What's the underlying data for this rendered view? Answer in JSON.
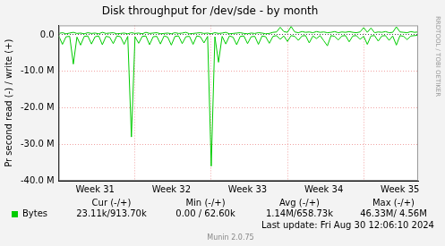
{
  "chart_data": {
    "type": "line",
    "title": "Disk throughput for /dev/sde - by month",
    "y_label": "Pr second read (-) / write (+)",
    "categories": [
      null,
      null,
      null,
      null,
      null,
      null,
      null,
      null,
      null,
      null,
      "Week 31",
      null,
      null,
      null,
      null,
      null,
      null,
      null,
      null,
      null,
      null,
      null,
      null,
      null,
      null,
      null,
      null,
      null,
      null,
      null,
      null,
      "Week 32",
      null,
      null,
      null,
      null,
      null,
      null,
      null,
      null,
      null,
      null,
      null,
      null,
      null,
      null,
      null,
      null,
      null,
      null,
      null,
      null,
      "Week 33",
      null,
      null,
      null,
      null,
      null,
      null,
      null,
      null,
      null,
      null,
      null,
      null,
      null,
      null,
      null,
      null,
      null,
      null,
      null,
      null,
      "Week 34",
      null,
      null,
      null,
      null,
      null,
      null,
      null,
      null,
      null,
      null,
      null,
      null,
      null,
      null,
      null,
      null,
      null,
      null,
      null,
      null,
      "Week 35",
      null,
      null,
      null,
      null,
      null
    ],
    "series": [
      {
        "name": "Bytes",
        "color": "#00cc00",
        "values": [
          400000,
          600000,
          300000,
          500000,
          700000,
          400000,
          500000,
          300000,
          600000,
          400000,
          500000,
          300000,
          700000,
          400000,
          500000,
          600000,
          300000,
          400000,
          500000,
          300000,
          600000,
          400000,
          500000,
          300000,
          700000,
          400000,
          500000,
          600000,
          300000,
          400000,
          500000,
          300000,
          600000,
          400000,
          500000,
          700000,
          300000,
          400000,
          500000,
          600000,
          400000,
          500000,
          300000,
          600000,
          400000,
          500000,
          700000,
          300000,
          400000,
          500000,
          600000,
          400000,
          300000,
          500000,
          400000,
          600000,
          500000,
          300000,
          400000,
          700000,
          800000,
          2100000,
          900000,
          700000,
          2300000,
          800000,
          600000,
          900000,
          700000,
          800000,
          600000,
          900000,
          700000,
          800000,
          600000,
          700000,
          900000,
          600000,
          800000,
          700000,
          900000,
          700000,
          600000,
          800000,
          2000000,
          700000,
          1900000,
          600000,
          800000,
          700000,
          900000,
          600000,
          700000,
          2200000,
          800000,
          700000,
          600000,
          900000,
          700000,
          800000
        ],
        "read_values": [
          -300000,
          -2600000,
          -500000,
          -400000,
          -8000000,
          -600000,
          -2800000,
          -400000,
          -300000,
          -2500000,
          -500000,
          -300000,
          -2700000,
          -400000,
          -600000,
          -2400000,
          -300000,
          -500000,
          -2600000,
          -400000,
          -28000000,
          -500000,
          -2300000,
          -400000,
          -300000,
          -2700000,
          -500000,
          -400000,
          -2500000,
          -300000,
          -600000,
          -2800000,
          -400000,
          -300000,
          -2400000,
          -500000,
          -400000,
          -2600000,
          -300000,
          -500000,
          -2200000,
          -400000,
          -36000000,
          -500000,
          -7500000,
          -400000,
          -2500000,
          -300000,
          -600000,
          -2700000,
          -400000,
          -300000,
          -2400000,
          -500000,
          -400000,
          -2600000,
          -300000,
          -500000,
          -2300000,
          -400000,
          -200000,
          -1200000,
          -300000,
          -1800000,
          -200000,
          -400000,
          -1500000,
          -300000,
          -200000,
          -2200000,
          -300000,
          -1000000,
          -200000,
          -1600000,
          -3000000,
          -200000,
          -400000,
          -1400000,
          -300000,
          -200000,
          -1900000,
          -300000,
          -200000,
          -1200000,
          -400000,
          -2600000,
          -300000,
          -200000,
          -1700000,
          -300000,
          -200000,
          -1500000,
          -300000,
          -2800000,
          -200000,
          -400000,
          -1300000,
          -300000,
          -200000,
          -100000
        ]
      }
    ],
    "ylim": [
      -40000000,
      2600000
    ],
    "yticks": [
      {
        "value": -40000000,
        "label": "-40.0 M"
      },
      {
        "value": -30000000,
        "label": "-30.0 M"
      },
      {
        "value": -20000000,
        "label": "-20.0 M"
      },
      {
        "value": -10000000,
        "label": "-10.0 M"
      },
      {
        "value": 0,
        "label": "0.0"
      }
    ],
    "grid": true,
    "legend_table": {
      "headers": [
        "Cur (-/+)",
        "Min (-/+)",
        "Avg (-/+)",
        "Max (-/+)"
      ],
      "rows": [
        {
          "name": "Bytes",
          "values": [
            "23.11k/913.70k",
            "0.00 / 62.60k",
            "1.14M/658.73k",
            "46.33M/ 4.56M"
          ]
        }
      ]
    },
    "last_update": "Last update: Fri Aug 30 12:06:10 2024",
    "footer": "Munin 2.0.75",
    "side_text": "RRDTOOL / TOBI OETIKER"
  }
}
